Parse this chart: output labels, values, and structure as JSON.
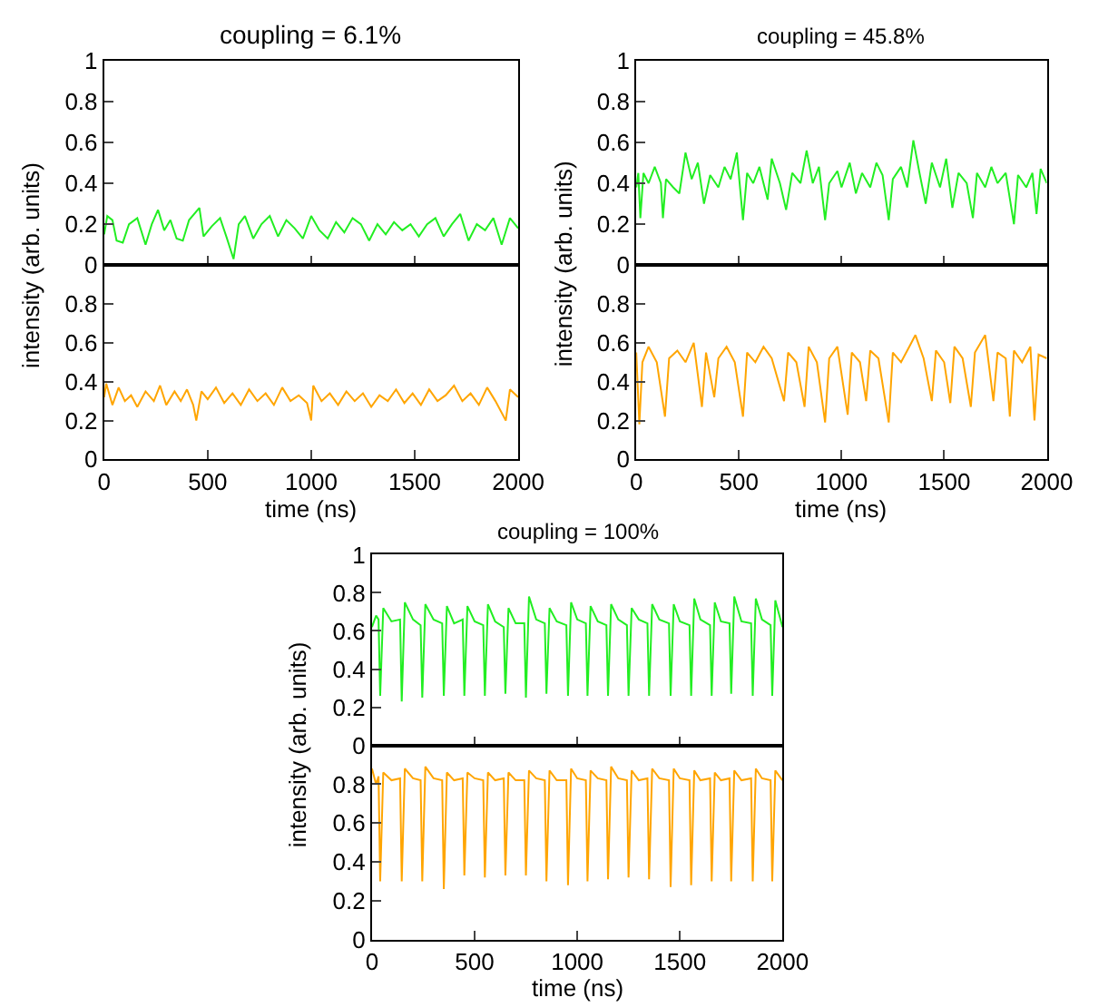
{
  "chart_data": [
    {
      "type": "line",
      "title": "coupling = 6.1%",
      "ylabel": "intensity (arb. units)",
      "tick_labels": "y",
      "xlim": [
        0,
        2000
      ],
      "xticks": [
        0,
        500,
        1000,
        1500,
        2000
      ],
      "ylim": [
        0,
        1
      ],
      "yticks": [
        0,
        0.2,
        0.4,
        0.6,
        0.8,
        1
      ],
      "series": [
        {
          "color": "#22ee22",
          "x": [
            0,
            15,
            40,
            60,
            90,
            120,
            160,
            200,
            230,
            260,
            290,
            320,
            350,
            380,
            410,
            460,
            480,
            520,
            560,
            590,
            625,
            650,
            680,
            720,
            760,
            800,
            840,
            880,
            920,
            960,
            1000,
            1040,
            1080,
            1120,
            1160,
            1200,
            1240,
            1280,
            1320,
            1360,
            1400,
            1440,
            1480,
            1520,
            1560,
            1600,
            1640,
            1680,
            1720,
            1760,
            1800,
            1840,
            1880,
            1920,
            1960,
            2000
          ],
          "values": [
            0.15,
            0.24,
            0.22,
            0.12,
            0.11,
            0.2,
            0.23,
            0.1,
            0.2,
            0.27,
            0.17,
            0.22,
            0.13,
            0.12,
            0.22,
            0.28,
            0.14,
            0.19,
            0.23,
            0.14,
            0.03,
            0.2,
            0.24,
            0.13,
            0.2,
            0.24,
            0.14,
            0.22,
            0.18,
            0.13,
            0.24,
            0.17,
            0.13,
            0.21,
            0.16,
            0.23,
            0.2,
            0.12,
            0.2,
            0.15,
            0.21,
            0.17,
            0.2,
            0.14,
            0.2,
            0.23,
            0.14,
            0.2,
            0.25,
            0.12,
            0.2,
            0.17,
            0.23,
            0.1,
            0.23,
            0.18
          ]
        }
      ]
    },
    {
      "type": "line",
      "xlabel": "time (ns)",
      "xlim": [
        0,
        2000
      ],
      "xticks": [
        0,
        500,
        1000,
        1500,
        2000
      ],
      "ylim": [
        0,
        1
      ],
      "yticks": [
        0,
        0.2,
        0.4,
        0.6,
        0.8
      ],
      "series": [
        {
          "color": "#ffa500",
          "x": [
            0,
            10,
            40,
            70,
            100,
            130,
            160,
            200,
            240,
            270,
            300,
            340,
            370,
            400,
            430,
            445,
            470,
            500,
            540,
            580,
            620,
            660,
            700,
            740,
            780,
            820,
            860,
            900,
            940,
            980,
            1000,
            1010,
            1050,
            1090,
            1130,
            1170,
            1210,
            1250,
            1290,
            1330,
            1370,
            1410,
            1450,
            1490,
            1530,
            1570,
            1610,
            1650,
            1690,
            1730,
            1770,
            1810,
            1850,
            1890,
            1940,
            1960,
            2000
          ],
          "values": [
            0.32,
            0.39,
            0.28,
            0.37,
            0.3,
            0.33,
            0.27,
            0.35,
            0.3,
            0.38,
            0.28,
            0.35,
            0.3,
            0.36,
            0.28,
            0.2,
            0.35,
            0.31,
            0.37,
            0.29,
            0.34,
            0.28,
            0.36,
            0.3,
            0.34,
            0.28,
            0.37,
            0.3,
            0.33,
            0.29,
            0.2,
            0.38,
            0.3,
            0.34,
            0.28,
            0.35,
            0.3,
            0.34,
            0.27,
            0.33,
            0.3,
            0.36,
            0.29,
            0.34,
            0.28,
            0.36,
            0.3,
            0.33,
            0.38,
            0.3,
            0.34,
            0.28,
            0.37,
            0.3,
            0.2,
            0.36,
            0.32
          ]
        }
      ]
    },
    {
      "type": "line",
      "title": "coupling = 45.8%",
      "ylabel": "intensity (arb. units)",
      "tick_labels": "y",
      "xlim": [
        0,
        2000
      ],
      "xticks": [
        0,
        500,
        1000,
        1500,
        2000
      ],
      "ylim": [
        0,
        1
      ],
      "yticks": [
        0,
        0.2,
        0.4,
        0.6,
        0.8,
        1
      ],
      "series": [
        {
          "color": "#22ee22",
          "x": [
            0,
            10,
            20,
            35,
            60,
            90,
            120,
            130,
            145,
            180,
            210,
            240,
            270,
            300,
            330,
            360,
            400,
            430,
            460,
            490,
            520,
            540,
            570,
            600,
            640,
            660,
            700,
            730,
            760,
            800,
            830,
            860,
            890,
            920,
            940,
            980,
            1000,
            1040,
            1070,
            1100,
            1140,
            1170,
            1200,
            1230,
            1250,
            1290,
            1320,
            1350,
            1380,
            1410,
            1440,
            1480,
            1510,
            1540,
            1570,
            1610,
            1640,
            1660,
            1700,
            1730,
            1760,
            1800,
            1840,
            1860,
            1900,
            1930,
            1950,
            1970,
            2000
          ],
          "values": [
            0.38,
            0.45,
            0.23,
            0.45,
            0.4,
            0.48,
            0.4,
            0.23,
            0.42,
            0.38,
            0.35,
            0.55,
            0.42,
            0.5,
            0.3,
            0.44,
            0.38,
            0.48,
            0.42,
            0.55,
            0.22,
            0.45,
            0.4,
            0.48,
            0.32,
            0.52,
            0.4,
            0.27,
            0.45,
            0.4,
            0.56,
            0.4,
            0.48,
            0.22,
            0.4,
            0.46,
            0.38,
            0.5,
            0.35,
            0.45,
            0.38,
            0.5,
            0.44,
            0.22,
            0.42,
            0.48,
            0.38,
            0.61,
            0.45,
            0.3,
            0.5,
            0.38,
            0.52,
            0.28,
            0.45,
            0.4,
            0.23,
            0.45,
            0.38,
            0.48,
            0.4,
            0.45,
            0.2,
            0.44,
            0.38,
            0.45,
            0.25,
            0.47,
            0.4
          ]
        }
      ]
    },
    {
      "type": "line",
      "xlabel": "time (ns)",
      "xlim": [
        0,
        2000
      ],
      "xticks": [
        0,
        500,
        1000,
        1500,
        2000
      ],
      "ylim": [
        0,
        1
      ],
      "yticks": [
        0,
        0.2,
        0.4,
        0.6,
        0.8
      ],
      "series": [
        {
          "color": "#ffa500",
          "x": [
            0,
            15,
            30,
            60,
            100,
            140,
            160,
            200,
            240,
            280,
            320,
            340,
            380,
            400,
            440,
            480,
            520,
            540,
            580,
            620,
            660,
            720,
            740,
            780,
            820,
            840,
            880,
            920,
            940,
            980,
            1030,
            1050,
            1090,
            1120,
            1140,
            1180,
            1230,
            1250,
            1290,
            1330,
            1360,
            1400,
            1440,
            1460,
            1500,
            1530,
            1550,
            1590,
            1630,
            1650,
            1700,
            1740,
            1760,
            1800,
            1820,
            1840,
            1880,
            1920,
            1940,
            1960,
            2000
          ],
          "values": [
            0.55,
            0.18,
            0.5,
            0.58,
            0.5,
            0.22,
            0.52,
            0.56,
            0.5,
            0.6,
            0.27,
            0.55,
            0.32,
            0.52,
            0.58,
            0.5,
            0.22,
            0.55,
            0.5,
            0.58,
            0.52,
            0.3,
            0.55,
            0.5,
            0.27,
            0.58,
            0.5,
            0.19,
            0.52,
            0.58,
            0.23,
            0.55,
            0.5,
            0.3,
            0.56,
            0.52,
            0.19,
            0.55,
            0.5,
            0.58,
            0.64,
            0.52,
            0.3,
            0.56,
            0.5,
            0.29,
            0.58,
            0.52,
            0.27,
            0.55,
            0.64,
            0.3,
            0.55,
            0.52,
            0.22,
            0.56,
            0.5,
            0.58,
            0.2,
            0.54,
            0.52
          ]
        }
      ]
    },
    {
      "type": "line",
      "title": "coupling = 100%",
      "ylabel": "intensity (arb. units)",
      "tick_labels": "y",
      "xlim": [
        0,
        2000
      ],
      "xticks": [
        0,
        500,
        1000,
        1500,
        2000
      ],
      "ylim": [
        0,
        1
      ],
      "yticks": [
        0,
        0.2,
        0.4,
        0.6,
        0.8,
        1
      ],
      "series": [
        {
          "color": "#22ee22",
          "x": [
            0,
            20,
            32,
            40,
            55,
            95,
            137,
            145,
            160,
            200,
            237,
            245,
            260,
            300,
            342,
            350,
            365,
            400,
            442,
            450,
            465,
            500,
            542,
            550,
            565,
            600,
            642,
            650,
            665,
            700,
            742,
            750,
            765,
            800,
            842,
            850,
            865,
            900,
            947,
            955,
            970,
            1000,
            1042,
            1050,
            1065,
            1100,
            1142,
            1150,
            1165,
            1200,
            1242,
            1250,
            1265,
            1300,
            1342,
            1350,
            1365,
            1400,
            1447,
            1455,
            1470,
            1500,
            1547,
            1555,
            1570,
            1600,
            1647,
            1655,
            1670,
            1700,
            1742,
            1750,
            1765,
            1800,
            1847,
            1855,
            1870,
            1900,
            1942,
            1950,
            1965,
            2000
          ],
          "values": [
            0.62,
            0.68,
            0.66,
            0.26,
            0.72,
            0.65,
            0.66,
            0.23,
            0.75,
            0.66,
            0.63,
            0.25,
            0.74,
            0.66,
            0.64,
            0.26,
            0.73,
            0.64,
            0.66,
            0.26,
            0.73,
            0.65,
            0.63,
            0.26,
            0.74,
            0.65,
            0.62,
            0.27,
            0.72,
            0.64,
            0.64,
            0.25,
            0.78,
            0.66,
            0.64,
            0.27,
            0.72,
            0.65,
            0.63,
            0.26,
            0.75,
            0.66,
            0.64,
            0.26,
            0.73,
            0.65,
            0.63,
            0.26,
            0.74,
            0.66,
            0.63,
            0.26,
            0.72,
            0.66,
            0.64,
            0.26,
            0.74,
            0.66,
            0.64,
            0.26,
            0.74,
            0.65,
            0.63,
            0.26,
            0.77,
            0.66,
            0.63,
            0.26,
            0.75,
            0.65,
            0.64,
            0.27,
            0.78,
            0.65,
            0.64,
            0.26,
            0.77,
            0.66,
            0.63,
            0.26,
            0.76,
            0.62
          ]
        }
      ]
    },
    {
      "type": "line",
      "xlabel": "time (ns)",
      "xlim": [
        0,
        2000
      ],
      "xticks": [
        0,
        500,
        1000,
        1500,
        2000
      ],
      "ylim": [
        0,
        1
      ],
      "yticks": [
        0,
        0.2,
        0.4,
        0.6,
        0.8
      ],
      "series": [
        {
          "color": "#ffa500",
          "x": [
            0,
            20,
            32,
            40,
            55,
            95,
            137,
            145,
            160,
            200,
            237,
            245,
            260,
            300,
            342,
            350,
            365,
            400,
            442,
            450,
            465,
            500,
            542,
            550,
            565,
            600,
            642,
            650,
            665,
            700,
            742,
            750,
            765,
            800,
            842,
            850,
            865,
            900,
            947,
            955,
            970,
            1000,
            1042,
            1050,
            1065,
            1100,
            1142,
            1150,
            1165,
            1200,
            1242,
            1250,
            1265,
            1300,
            1342,
            1350,
            1365,
            1400,
            1447,
            1455,
            1470,
            1500,
            1547,
            1555,
            1570,
            1600,
            1647,
            1655,
            1670,
            1700,
            1742,
            1750,
            1765,
            1800,
            1847,
            1855,
            1870,
            1900,
            1942,
            1950,
            1965,
            2000
          ],
          "values": [
            0.88,
            0.8,
            0.84,
            0.3,
            0.86,
            0.82,
            0.83,
            0.3,
            0.88,
            0.83,
            0.82,
            0.3,
            0.89,
            0.83,
            0.82,
            0.26,
            0.86,
            0.82,
            0.83,
            0.33,
            0.86,
            0.83,
            0.82,
            0.32,
            0.86,
            0.82,
            0.83,
            0.33,
            0.86,
            0.82,
            0.82,
            0.33,
            0.87,
            0.83,
            0.82,
            0.3,
            0.87,
            0.82,
            0.82,
            0.28,
            0.88,
            0.83,
            0.82,
            0.3,
            0.87,
            0.83,
            0.82,
            0.31,
            0.89,
            0.83,
            0.82,
            0.32,
            0.87,
            0.82,
            0.83,
            0.31,
            0.88,
            0.83,
            0.82,
            0.27,
            0.88,
            0.83,
            0.82,
            0.28,
            0.87,
            0.82,
            0.83,
            0.3,
            0.86,
            0.82,
            0.83,
            0.3,
            0.87,
            0.82,
            0.83,
            0.3,
            0.88,
            0.83,
            0.82,
            0.3,
            0.87,
            0.82
          ]
        }
      ]
    }
  ]
}
